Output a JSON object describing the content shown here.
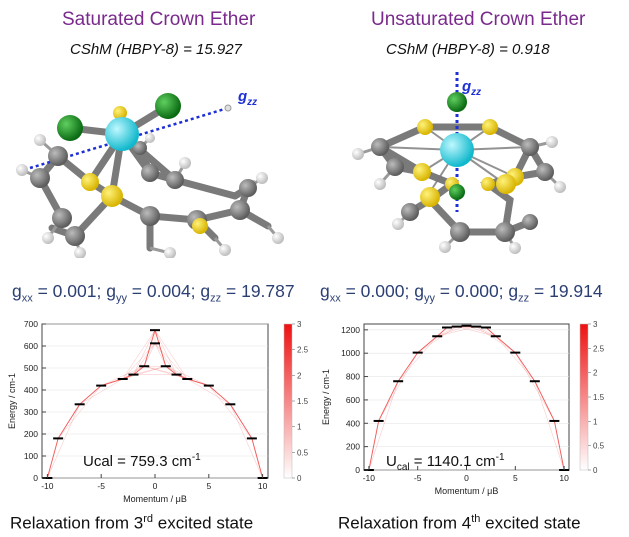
{
  "left_panel": {
    "title": "Saturated Crown Ether",
    "cshm": "CShM (HBPY-8) = 15.927",
    "axis_label": "g",
    "axis_sub": "zz",
    "gline": [
      "g",
      "xx",
      " = 0.001; g",
      "yy",
      " = 0.004; g",
      "zz",
      " = 19.787"
    ],
    "ucal_prefix": "Ucal = 759.3 cm",
    "ucal_sup": "-1",
    "caption_pre": "Relaxation from 3",
    "caption_sup": "rd",
    "caption_post": " excited state"
  },
  "right_panel": {
    "title": "Unsaturated Crown Ether",
    "cshm": "CShM (HBPY-8) = 0.918",
    "axis_label": "g",
    "axis_sub": "zz",
    "gline": [
      "g",
      "xx",
      " = 0.000; g",
      "yy",
      " = 0.000; g",
      "zz",
      " = 19.914"
    ],
    "ucal_main": "U",
    "ucal_sub": "cal",
    "ucal_rest": " = 1140.1 cm",
    "ucal_sup": "-1",
    "caption_pre": "Relaxation from 4",
    "caption_sup": "th",
    "caption_post": " excited state"
  },
  "chart_data": [
    {
      "type": "line",
      "xlabel": "Momentum / μB",
      "ylabel": "Energy / cm-1",
      "xlim": [
        -10.5,
        10.5
      ],
      "ylim": [
        0,
        700
      ],
      "xticks": [
        -10,
        -5,
        0,
        5,
        10
      ],
      "yticks": [
        0,
        100,
        200,
        300,
        400,
        500,
        600,
        700
      ],
      "states": [
        {
          "m": -10,
          "e": 0
        },
        {
          "m": 10,
          "e": 0
        },
        {
          "m": -9,
          "e": 180
        },
        {
          "m": 9,
          "e": 180
        },
        {
          "m": -7,
          "e": 335
        },
        {
          "m": 7,
          "e": 335
        },
        {
          "m": -5,
          "e": 420
        },
        {
          "m": 5,
          "e": 420
        },
        {
          "m": -3,
          "e": 450
        },
        {
          "m": 3,
          "e": 450
        },
        {
          "m": -1,
          "e": 508
        },
        {
          "m": 1,
          "e": 508
        },
        {
          "m": -2,
          "e": 470
        },
        {
          "m": 2,
          "e": 470
        },
        {
          "m": 0,
          "e": 612
        },
        {
          "m": 0,
          "e": 672
        }
      ],
      "colorbar": {
        "min": 0,
        "max": 3,
        "ticks": [
          0,
          0.5,
          1,
          1.5,
          2,
          2.5,
          3
        ],
        "color_low": "#ffffff",
        "color_high": "#ee1111"
      }
    },
    {
      "type": "line",
      "xlabel": "Momentum / μB",
      "ylabel": "Energy / cm-1",
      "xlim": [
        -10.5,
        10.5
      ],
      "ylim": [
        0,
        1250
      ],
      "xticks": [
        -10,
        -5,
        0,
        5,
        10
      ],
      "yticks": [
        0,
        200,
        400,
        600,
        800,
        1000,
        1200
      ],
      "states": [
        {
          "m": -10,
          "e": 0
        },
        {
          "m": 10,
          "e": 0
        },
        {
          "m": -9,
          "e": 420
        },
        {
          "m": 9,
          "e": 420
        },
        {
          "m": -7,
          "e": 760
        },
        {
          "m": 7,
          "e": 760
        },
        {
          "m": -5,
          "e": 1005
        },
        {
          "m": 5,
          "e": 1005
        },
        {
          "m": -3,
          "e": 1145
        },
        {
          "m": 3,
          "e": 1145
        },
        {
          "m": -1,
          "e": 1228
        },
        {
          "m": 1,
          "e": 1228
        },
        {
          "m": -2,
          "e": 1220
        },
        {
          "m": 2,
          "e": 1220
        },
        {
          "m": 0,
          "e": 1235
        }
      ],
      "colorbar": {
        "min": 0,
        "max": 3,
        "ticks": [
          0,
          0.5,
          1,
          1.5,
          2,
          2.5,
          3
        ],
        "color_low": "#ffffff",
        "color_high": "#ee1111"
      }
    }
  ]
}
